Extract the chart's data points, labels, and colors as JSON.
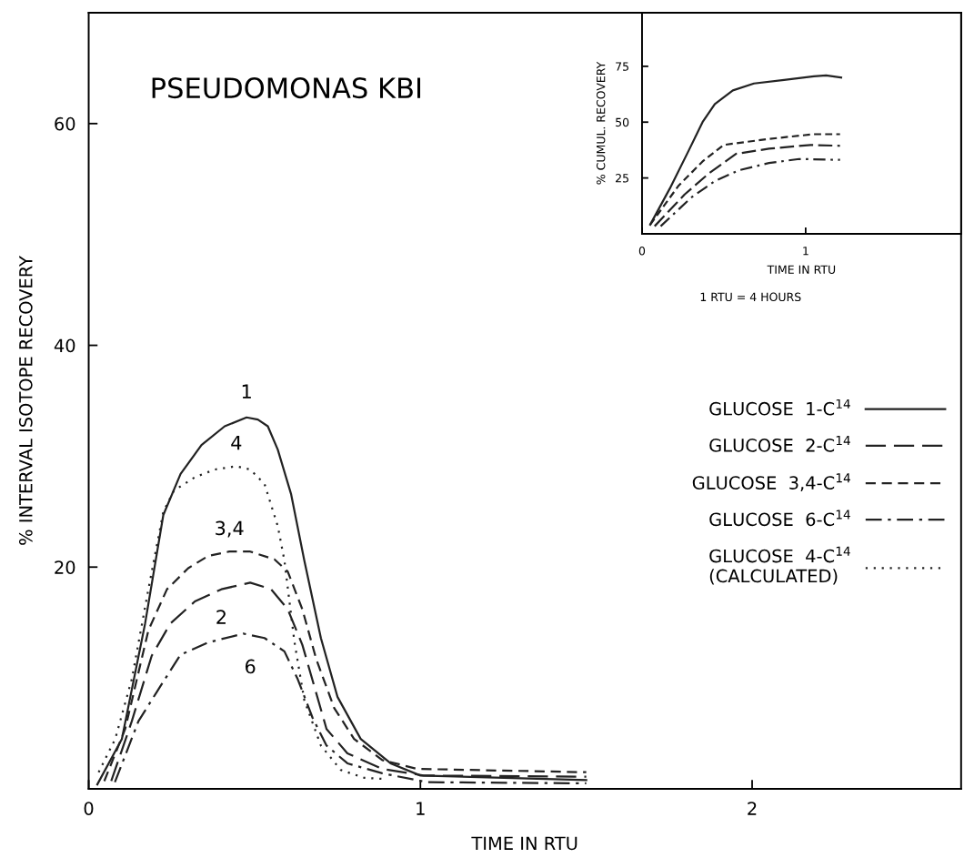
{
  "chart_data": [
    {
      "type": "line",
      "title": "PSEUDOMONAS KBI",
      "xlabel": "TIME IN RTU",
      "ylabel": "% INTERVAL ISOTOPE RECOVERY",
      "xlim": [
        0,
        2.63
      ],
      "xticks": [
        0,
        1,
        2
      ],
      "ylim": [
        0,
        70
      ],
      "yticks": [
        20,
        40,
        60
      ],
      "grid": false,
      "legend": "right",
      "series": [
        {
          "name": "GLUCOSE  1-C$^{14}$",
          "color": "#222222",
          "line_style": "solid",
          "x": [
            0.026,
            0.1,
            0.17,
            0.225,
            0.277,
            0.34,
            0.41,
            0.476,
            0.51,
            0.54,
            0.57,
            0.61,
            0.65,
            0.7,
            0.75,
            0.82,
            0.91,
            1.0,
            1.5
          ],
          "values": [
            0.4,
            4.5,
            14.9,
            24.7,
            28.4,
            31,
            32.7,
            33.5,
            33.3,
            32.7,
            30.6,
            26.6,
            20.6,
            13.6,
            8.3,
            4.5,
            2.3,
            1.2,
            0.8
          ]
        },
        {
          "name": "GLUCOSE  2-C$^{14}$",
          "color": "#222222",
          "line_style": "longdash",
          "x": [
            0.068,
            0.13,
            0.19,
            0.246,
            0.32,
            0.4,
            0.487,
            0.55,
            0.6,
            0.644,
            0.717,
            0.78,
            0.885,
            1.01,
            1.5
          ],
          "values": [
            0.7,
            6.1,
            12,
            14.9,
            16.9,
            18,
            18.6,
            18,
            16.2,
            13,
            5.4,
            3.2,
            1.8,
            1.2,
            1.1
          ]
        },
        {
          "name": "GLUCOSE  3,4-C$^{14}$",
          "color": "#222222",
          "line_style": "dashed",
          "x": [
            0.047,
            0.11,
            0.18,
            0.236,
            0.3,
            0.36,
            0.424,
            0.487,
            0.56,
            0.6,
            0.644,
            0.686,
            0.74,
            0.8,
            0.885,
            0.99,
            1.5
          ],
          "values": [
            0.7,
            5.4,
            14.3,
            18,
            19.9,
            21,
            21.4,
            21.4,
            20.7,
            19.6,
            16.2,
            11.7,
            7.3,
            4.5,
            2.6,
            1.8,
            1.5
          ]
        },
        {
          "name": "GLUCOSE  6-C$^{14}$",
          "color": "#222222",
          "line_style": "dashdot",
          "x": [
            0.079,
            0.15,
            0.215,
            0.277,
            0.36,
            0.466,
            0.53,
            0.59,
            0.63,
            0.675,
            0.717,
            0.78,
            0.885,
            1.02,
            1.5
          ],
          "values": [
            0.6,
            6.1,
            9.2,
            12.1,
            13.2,
            14,
            13.6,
            12.4,
            9.9,
            6.4,
            3.9,
            2.3,
            1.4,
            0.6,
            0.5
          ]
        },
        {
          "name": "GLUCOSE  4-C$^{14}$\n(CALCULATED)",
          "color": "#222222",
          "line_style": "dotted",
          "x": [
            0.03,
            0.08,
            0.13,
            0.18,
            0.225,
            0.257,
            0.32,
            0.38,
            0.445,
            0.487,
            0.53,
            0.57,
            0.59,
            0.62,
            0.65,
            0.7,
            0.76,
            0.83,
            0.885
          ],
          "values": [
            1.5,
            4.5,
            9.9,
            18,
            25,
            26.9,
            28.1,
            28.8,
            29.1,
            28.8,
            27.5,
            23.7,
            20.6,
            13.3,
            8,
            3.9,
            1.7,
            1.0,
            0.9
          ]
        }
      ],
      "annotations": [
        {
          "text": "1",
          "x": 0.476,
          "y": 33.5
        },
        {
          "text": "4",
          "x": 0.445,
          "y": 29.1
        },
        {
          "text": "3,4",
          "x": 0.424,
          "y": 21.4
        },
        {
          "text": "2",
          "x": 0.4,
          "y": 18
        },
        {
          "text": "6",
          "x": 0.487,
          "y": 14
        }
      ]
    },
    {
      "type": "line",
      "xlabel": "TIME IN RTU",
      "ylabel": "% CUMUL. RECOVERY",
      "xlim": [
        0,
        1.95
      ],
      "xticks": [
        0,
        1
      ],
      "ylim": [
        0,
        99
      ],
      "yticks": [
        25,
        50,
        75
      ],
      "grid": false,
      "series": [
        {
          "color": "#222222",
          "line_style": "solid",
          "x": [
            0.05,
            0.17,
            0.28,
            0.37,
            0.445,
            0.555,
            0.684,
            0.868,
            1.05,
            1.125,
            1.217
          ],
          "values": [
            4.1,
            20.3,
            36.5,
            50,
            58.1,
            64.2,
            67.3,
            68.9,
            70.5,
            70.9,
            70
          ]
        },
        {
          "color": "#222222",
          "line_style": "dashed",
          "x": [
            0.05,
            0.224,
            0.37,
            0.5,
            0.776,
            1.05,
            1.21
          ],
          "values": [
            4.1,
            21.6,
            32.4,
            39.8,
            42.5,
            44.6,
            44.6
          ]
        },
        {
          "color": "#222222",
          "line_style": "longdash",
          "x": [
            0.077,
            0.26,
            0.408,
            0.574,
            0.776,
            1.03,
            1.21
          ],
          "values": [
            3.4,
            17.6,
            27,
            35.8,
            38.1,
            39.8,
            39.4
          ]
        },
        {
          "color": "#222222",
          "line_style": "dashdot",
          "x": [
            0.114,
            0.3,
            0.445,
            0.59,
            0.776,
            0.96,
            1.21
          ],
          "values": [
            3.4,
            16.2,
            23.6,
            28.4,
            31.7,
            33.5,
            33.1
          ]
        }
      ],
      "annotations": [
        "1 RTU = 4 HOURS"
      ]
    }
  ]
}
